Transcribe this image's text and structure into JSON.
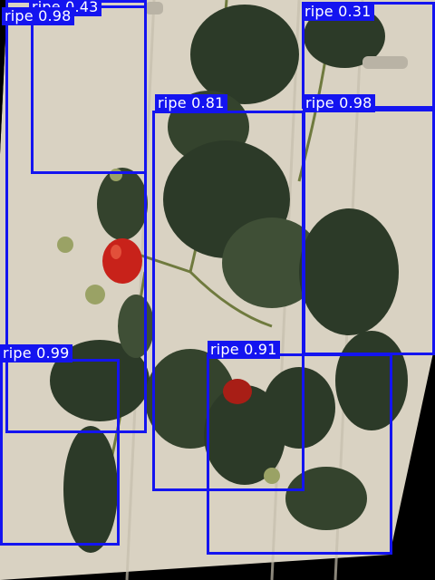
{
  "image": {
    "description_free": true,
    "colors": {
      "background": "#000000",
      "panel": "#ddd7c8",
      "panel_shade": "#cfc7b4",
      "leaf_dark": "#2c3a28",
      "leaf_mid": "#3f4f36",
      "stem": "#6f7a3e",
      "berry": "#c8221a",
      "berry_hi": "#e2503a",
      "box": "#1414f0",
      "label_text": "#ffffff"
    }
  },
  "detections": [
    {
      "label": "ripe 0.98"
    },
    {
      "label": "ripe 0.43"
    },
    {
      "label": "ripe 0.31"
    },
    {
      "label": "ripe 0.81"
    },
    {
      "label": "ripe 0.98"
    },
    {
      "label": "ripe 0.99"
    },
    {
      "label": "ripe 0.91"
    }
  ]
}
